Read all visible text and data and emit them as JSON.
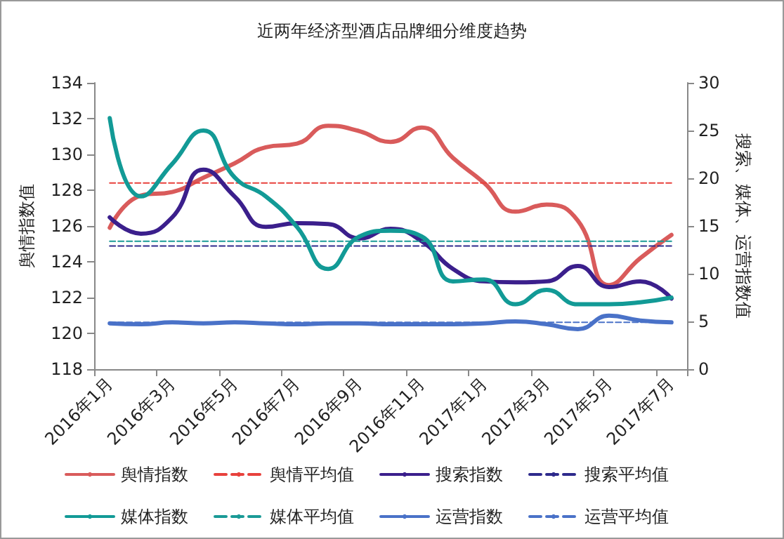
{
  "chart_data": {
    "type": "line",
    "title": "近两年经济型酒店品牌细分维度趋势",
    "ylabel": "舆情指数值",
    "y2label": "搜索、媒体、运营指数值",
    "categories": [
      "2016年1月",
      null,
      "2016年3月",
      null,
      "2016年5月",
      null,
      "2016年7月",
      null,
      "2016年9月",
      null,
      "2016年11月",
      null,
      "2017年1月",
      null,
      "2017年3月",
      null,
      "2017年5月",
      null,
      "2017年7月"
    ],
    "series": [
      {
        "name": "舆情指数",
        "color": "#d95b5b",
        "values": [
          125.9,
          127.7,
          127.9,
          128.7,
          129.5,
          130.4,
          130.6,
          131.6,
          131.3,
          130.7,
          131.5,
          129.8,
          128.4,
          126.8,
          127.2,
          126.3,
          122.7,
          124.2,
          125.5
        ]
      },
      {
        "name": "舆情平均值",
        "color": "#e8413c",
        "line_style": "dashed",
        "values": [
          128.4,
          128.4,
          128.4,
          128.4,
          128.4,
          128.4,
          128.4,
          128.4,
          128.4,
          128.4,
          128.4,
          128.4,
          128.4,
          128.4,
          128.4,
          128.4,
          128.4,
          128.4,
          128.4
        ]
      },
      {
        "name": "搜索指数",
        "color": "#3b1f8c",
        "axis": "y2",
        "values": [
          15.9,
          14.2,
          15.9,
          20.9,
          18.1,
          14.9,
          15.3,
          15.2,
          13.7,
          14.7,
          13.4,
          10.5,
          9.2,
          9.1,
          9.2,
          10.8,
          8.6,
          9.2,
          7.4
        ]
      },
      {
        "name": "搜索平均值",
        "color": "#2e2a8c",
        "axis": "y2",
        "line_style": "dashed",
        "values": [
          12.9,
          12.9,
          12.9,
          12.9,
          12.9,
          12.9,
          12.9,
          12.9,
          12.9,
          12.9,
          12.9,
          12.9,
          12.9,
          12.9,
          12.9,
          12.9,
          12.9,
          12.9,
          12.9
        ]
      },
      {
        "name": "媒体指数",
        "color": "#129a96",
        "axis": "y2",
        "values": [
          26.3,
          18.1,
          21.5,
          25.0,
          20.1,
          18.1,
          14.9,
          10.5,
          13.9,
          14.5,
          13.9,
          9.2,
          9.4,
          6.8,
          8.3,
          6.8,
          6.8,
          7.0,
          7.5
        ]
      },
      {
        "name": "媒体平均值",
        "color": "#1a9a96",
        "axis": "y2",
        "line_style": "dashed",
        "values": [
          13.4,
          13.4,
          13.4,
          13.4,
          13.4,
          13.4,
          13.4,
          13.4,
          13.4,
          13.4,
          13.4,
          13.4,
          13.4,
          13.4,
          13.4,
          13.4,
          13.4,
          13.4,
          13.4
        ]
      },
      {
        "name": "运营指数",
        "color": "#4a72c8",
        "axis": "y2",
        "values": [
          4.8,
          4.7,
          4.9,
          4.8,
          4.9,
          4.8,
          4.7,
          4.8,
          4.8,
          4.7,
          4.7,
          4.7,
          4.8,
          5.0,
          4.7,
          4.2,
          5.6,
          5.1,
          4.9
        ]
      },
      {
        "name": "运营平均值",
        "color": "#4a72c8",
        "axis": "y2",
        "line_style": "dashed",
        "values": [
          4.9,
          4.9,
          4.9,
          4.9,
          4.9,
          4.9,
          4.9,
          4.9,
          4.9,
          4.9,
          4.9,
          4.9,
          4.9,
          4.9,
          4.9,
          4.9,
          4.9,
          4.9,
          4.9
        ]
      }
    ],
    "ylim": [
      118,
      134
    ],
    "yticks": [
      118,
      120,
      122,
      124,
      126,
      128,
      130,
      132,
      134
    ],
    "y2lim": [
      0,
      30
    ],
    "y2ticks": [
      0,
      5,
      10,
      15,
      20,
      25,
      30
    ],
    "grid": false,
    "legend": "bottom",
    "marker": "none"
  }
}
